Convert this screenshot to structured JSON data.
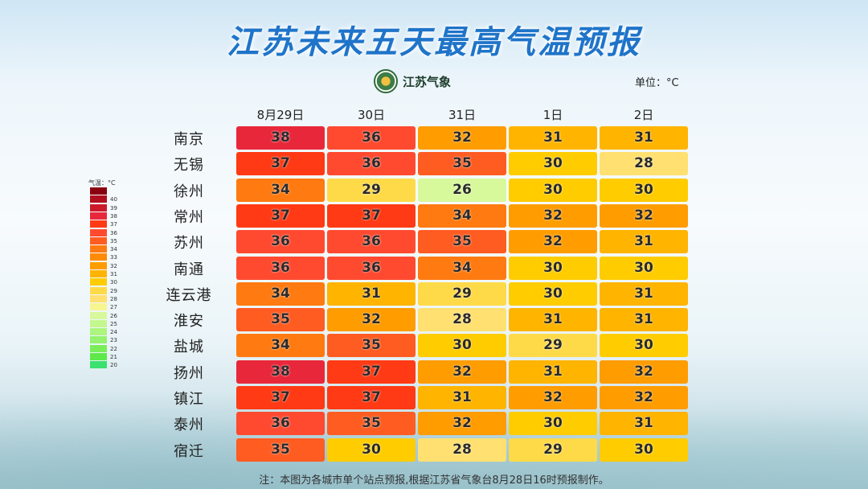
{
  "title": "江苏未来五天最高气温预报",
  "logo_text": "江苏气象",
  "unit": "单位：°C",
  "note": "注：本图为各城市单个站点预报,根据江苏省气象台8月28日16时预报制作。",
  "chart_data": {
    "type": "heatmap",
    "title": "江苏未来五天最高气温预报",
    "columns": [
      "8月29日",
      "30日",
      "31日",
      "1日",
      "2日"
    ],
    "rows": [
      "南京",
      "无锡",
      "徐州",
      "常州",
      "苏州",
      "南通",
      "连云港",
      "淮安",
      "盐城",
      "扬州",
      "镇江",
      "泰州",
      "宿迁"
    ],
    "values": [
      [
        38,
        36,
        32,
        31,
        31
      ],
      [
        37,
        36,
        35,
        30,
        28
      ],
      [
        34,
        29,
        26,
        30,
        30
      ],
      [
        37,
        37,
        34,
        32,
        32
      ],
      [
        36,
        36,
        35,
        32,
        31
      ],
      [
        36,
        36,
        34,
        30,
        30
      ],
      [
        34,
        31,
        29,
        30,
        31
      ],
      [
        35,
        32,
        28,
        31,
        31
      ],
      [
        34,
        35,
        30,
        29,
        30
      ],
      [
        38,
        37,
        32,
        31,
        32
      ],
      [
        37,
        37,
        31,
        32,
        32
      ],
      [
        36,
        35,
        32,
        30,
        31
      ],
      [
        35,
        30,
        28,
        29,
        30
      ]
    ],
    "legend": {
      "title": "气温：°C",
      "labels": [
        40,
        39,
        38,
        37,
        36,
        35,
        34,
        33,
        32,
        31,
        30,
        29,
        28,
        27,
        26,
        25,
        24,
        23,
        22,
        21,
        20
      ],
      "colors": {
        "41": "#8a0010",
        "40": "#b0101e",
        "39": "#cc1a2a",
        "38": "#e8283a",
        "37": "#ff3a14",
        "36": "#ff4a30",
        "35": "#ff5c22",
        "34": "#ff7a10",
        "33": "#ff8a06",
        "32": "#ff9c00",
        "31": "#ffb400",
        "30": "#ffcc00",
        "29": "#ffda48",
        "28": "#ffe070",
        "27": "#f7f592",
        "26": "#d8f89c",
        "25": "#c4f78e",
        "24": "#acf57e",
        "23": "#94f26e",
        "22": "#7aee5a",
        "21": "#5ee84a",
        "20": "#3ce070"
      }
    }
  }
}
